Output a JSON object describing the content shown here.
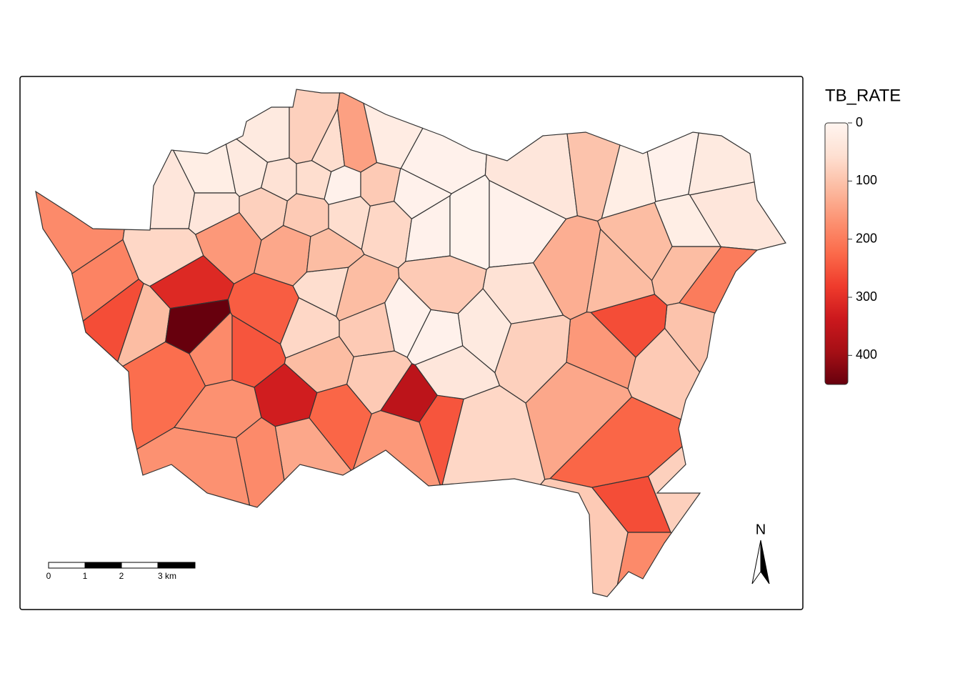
{
  "chart_data": {
    "type": "choropleth",
    "legend_title": "TB_RATE",
    "clim": [
      0,
      450
    ],
    "ticks": [
      0,
      100,
      200,
      300,
      400
    ],
    "colormap": [
      "#fff5f0",
      "#fee0d2",
      "#fcbba1",
      "#fc9272",
      "#fb6a4a",
      "#ef3b2c",
      "#cb181d",
      "#a50f15",
      "#67000d"
    ],
    "values": [
      30,
      80,
      60,
      150,
      25,
      10,
      20,
      30,
      50,
      60,
      10,
      90,
      10,
      40,
      40,
      80,
      90,
      60,
      70,
      10,
      5,
      10,
      40,
      100,
      20,
      10,
      30,
      40,
      20,
      110,
      110,
      200,
      100,
      90,
      160,
      260,
      140,
      230,
      260,
      180,
      80,
      90,
      130,
      110,
      50,
      80,
      30,
      70,
      10,
      90,
      250,
      40,
      360,
      10,
      110,
      60,
      70,
      110,
      90,
      90,
      160,
      230,
      330,
      140,
      180,
      170,
      170,
      220,
      110,
      260,
      190,
      180,
      310,
      450,
      180,
      250,
      240,
      160,
      70,
      140,
      110
    ],
    "scale_bar": [
      "0",
      "1",
      "2",
      "3 km"
    ],
    "north_label": "N"
  }
}
